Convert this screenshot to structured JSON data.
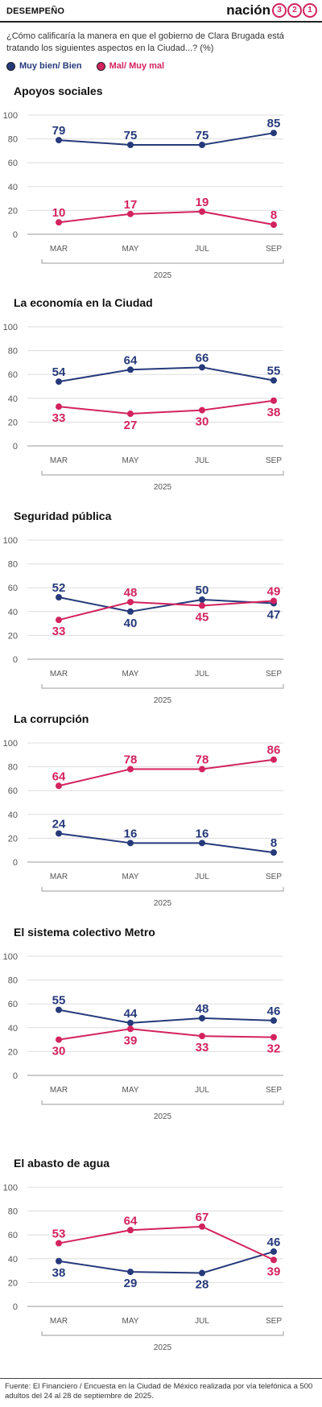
{
  "header": {
    "section": "DESEMPEÑO",
    "brand_word": "nación",
    "brand_digits": [
      "3",
      "2",
      "1"
    ]
  },
  "question": "¿Cómo calificaría la manera en que el gobierno de Clara Brugada está tratando los siguientes aspectos en la Ciudad...? (%)",
  "legend": [
    {
      "label": "Muy bien/ Bien",
      "color": "#263a7a"
    },
    {
      "label": "Mal/ Muy mal",
      "color": "#d3235f"
    }
  ],
  "colors": {
    "good": "#263a7a",
    "bad": "#d3235f",
    "axis": "#999999",
    "grid": "#dddddd"
  },
  "footer": {
    "source": "Fuente: El Financiero / Encuesta en la Ciudad de México realizada por vía telefónica a 500 adultos del 24 al 28 de septiembre de 2025."
  },
  "chart_data": [
    {
      "type": "line",
      "title": "Apoyos sociales",
      "categories": [
        "MAR",
        "MAY",
        "JUL",
        "SEP"
      ],
      "xlabel": "2025",
      "ylim": [
        0,
        100
      ],
      "yticks": [
        0,
        20,
        40,
        60,
        80,
        100
      ],
      "series": [
        {
          "name": "Muy bien/ Bien",
          "values": [
            79,
            75,
            75,
            85
          ],
          "label_pos": [
            "above",
            "above",
            "above",
            "above"
          ]
        },
        {
          "name": "Mal/ Muy mal",
          "values": [
            10,
            17,
            19,
            8
          ],
          "label_pos": [
            "above",
            "above",
            "above",
            "above"
          ]
        }
      ]
    },
    {
      "type": "line",
      "title": "La economía en la Ciudad",
      "categories": [
        "MAR",
        "MAY",
        "JUL",
        "SEP"
      ],
      "xlabel": "2025",
      "ylim": [
        0,
        100
      ],
      "yticks": [
        0,
        20,
        40,
        60,
        80,
        100
      ],
      "series": [
        {
          "name": "Muy bien/ Bien",
          "values": [
            54,
            64,
            66,
            55
          ],
          "label_pos": [
            "above",
            "above",
            "above",
            "above"
          ]
        },
        {
          "name": "Mal/ Muy mal",
          "values": [
            33,
            27,
            30,
            38
          ],
          "label_pos": [
            "below",
            "below",
            "below",
            "below"
          ]
        }
      ]
    },
    {
      "type": "line",
      "title": "Seguridad pública",
      "categories": [
        "MAR",
        "MAY",
        "JUL",
        "SEP"
      ],
      "xlabel": "2025",
      "ylim": [
        0,
        100
      ],
      "yticks": [
        0,
        20,
        40,
        60,
        80,
        100
      ],
      "series": [
        {
          "name": "Muy bien/ Bien",
          "values": [
            52,
            40,
            50,
            47
          ],
          "label_pos": [
            "above",
            "below",
            "above",
            "below"
          ]
        },
        {
          "name": "Mal/ Muy mal",
          "values": [
            33,
            48,
            45,
            49
          ],
          "label_pos": [
            "below",
            "above",
            "below",
            "above"
          ]
        }
      ]
    },
    {
      "type": "line",
      "title": "La corrupción",
      "categories": [
        "MAR",
        "MAY",
        "JUL",
        "SEP"
      ],
      "xlabel": "2025",
      "ylim": [
        0,
        100
      ],
      "yticks": [
        0,
        20,
        40,
        60,
        80,
        100
      ],
      "series": [
        {
          "name": "Muy bien/ Bien",
          "values": [
            24,
            16,
            16,
            8
          ],
          "label_pos": [
            "above",
            "above",
            "above",
            "above"
          ]
        },
        {
          "name": "Mal/ Muy mal",
          "values": [
            64,
            78,
            78,
            86
          ],
          "label_pos": [
            "above",
            "above",
            "above",
            "above"
          ]
        }
      ]
    },
    {
      "type": "line",
      "title": "El sistema colectivo Metro",
      "categories": [
        "MAR",
        "MAY",
        "JUL",
        "SEP"
      ],
      "xlabel": "2025",
      "ylim": [
        0,
        100
      ],
      "yticks": [
        0,
        20,
        40,
        60,
        80,
        100
      ],
      "series": [
        {
          "name": "Muy bien/ Bien",
          "values": [
            55,
            44,
            48,
            46
          ],
          "label_pos": [
            "above",
            "above",
            "above",
            "above"
          ]
        },
        {
          "name": "Mal/ Muy mal",
          "values": [
            30,
            39,
            33,
            32
          ],
          "label_pos": [
            "below",
            "below",
            "below",
            "below"
          ]
        }
      ]
    },
    {
      "type": "line",
      "title": "El abasto de agua",
      "categories": [
        "MAR",
        "MAY",
        "JUL",
        "SEP"
      ],
      "xlabel": "2025",
      "ylim": [
        0,
        100
      ],
      "yticks": [
        0,
        20,
        40,
        60,
        80,
        100
      ],
      "series": [
        {
          "name": "Muy bien/ Bien",
          "values": [
            38,
            29,
            28,
            46
          ],
          "label_pos": [
            "below",
            "below",
            "below",
            "above"
          ]
        },
        {
          "name": "Mal/ Muy mal",
          "values": [
            53,
            64,
            67,
            39
          ],
          "label_pos": [
            "above",
            "above",
            "above",
            "below"
          ]
        }
      ]
    }
  ]
}
